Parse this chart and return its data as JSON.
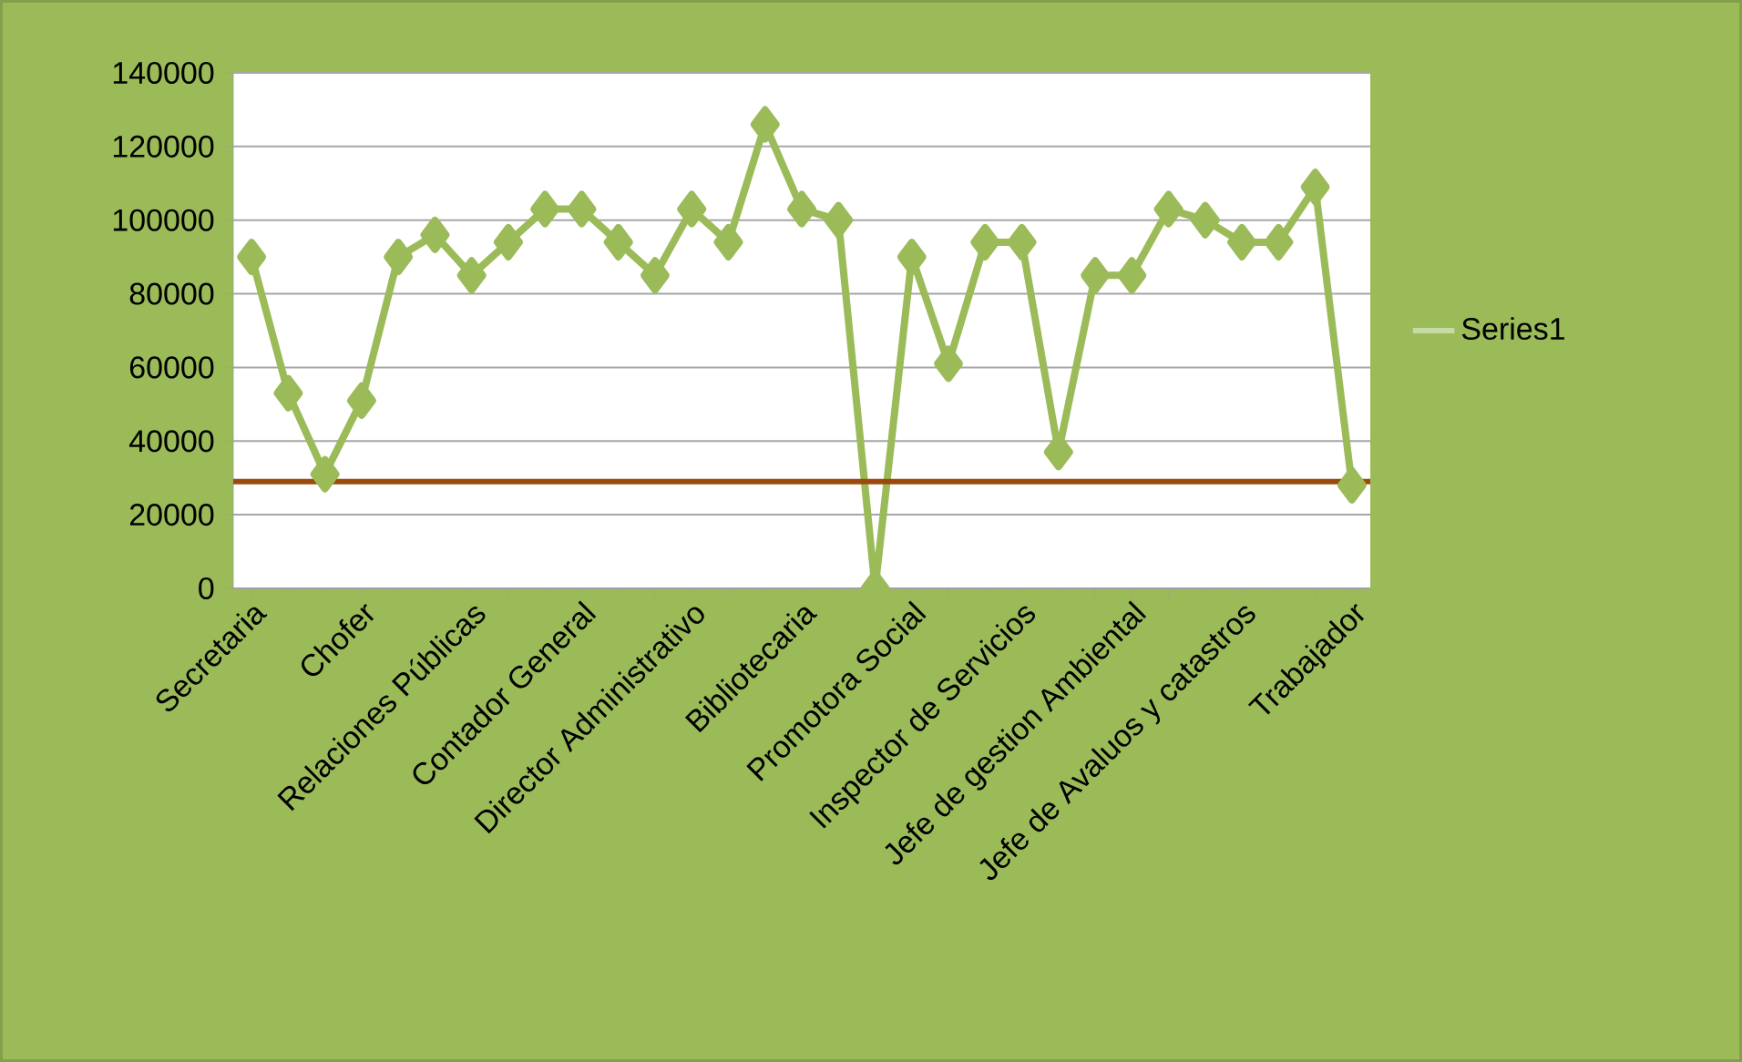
{
  "chart_data": {
    "type": "line",
    "categories": [
      "Secretaria",
      null,
      null,
      "Chofer",
      null,
      null,
      "Relaciones Públicas",
      null,
      null,
      "Contador General",
      null,
      null,
      "Director Administrativo",
      null,
      null,
      "Bibliotecaria",
      null,
      null,
      "Promotora Social",
      null,
      null,
      "Inspector de Servicios",
      null,
      null,
      "Jefe de gestion Ambiental",
      null,
      null,
      "Jefe de Avaluos y catastros",
      null,
      null,
      "Trabajador"
    ],
    "series": [
      {
        "name": "Series1",
        "color": "#9bbb59",
        "values": [
          90000,
          53000,
          31000,
          51000,
          90000,
          96000,
          85000,
          94000,
          103000,
          103000,
          94000,
          85000,
          103000,
          94000,
          126000,
          103000,
          100000,
          0,
          90000,
          61000,
          94000,
          94000,
          37000,
          85000,
          85000,
          103000,
          100000,
          94000,
          94000,
          109000,
          28000
        ]
      }
    ],
    "ylim": [
      0,
      140000
    ],
    "yticks": [
      0,
      20000,
      40000,
      60000,
      80000,
      100000,
      120000,
      140000
    ],
    "ref_lines": [
      {
        "axis": "y",
        "value": 29000,
        "color": "#9c4a0c"
      }
    ],
    "grid": "y",
    "legend": "right",
    "marker": "diamond",
    "line_style": "solid"
  }
}
